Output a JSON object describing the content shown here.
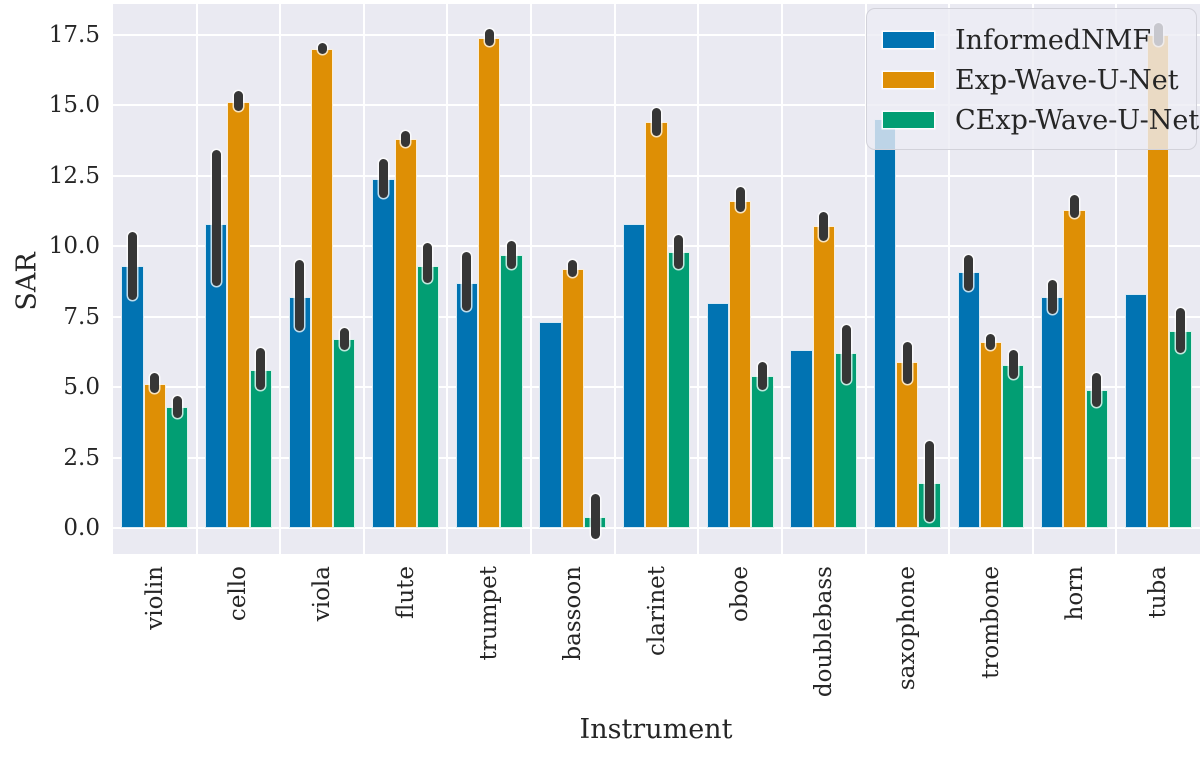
{
  "chart_data": {
    "type": "bar",
    "title": "",
    "xlabel": "Instrument",
    "ylabel": "SAR",
    "categories": [
      "violin",
      "cello",
      "viola",
      "flute",
      "trumpet",
      "bassoon",
      "clarinet",
      "oboe",
      "doublebass",
      "saxophone",
      "trombone",
      "horn",
      "tuba"
    ],
    "series": [
      {
        "name": "InformedNMF",
        "color": "#0173b2",
        "values": [
          9.3,
          10.8,
          8.2,
          12.4,
          8.7,
          7.3,
          10.8,
          8.0,
          6.3,
          14.5,
          9.1,
          8.2,
          8.3
        ],
        "ci_low": [
          8.1,
          8.6,
          7.0,
          11.7,
          7.7,
          null,
          null,
          null,
          null,
          null,
          8.4,
          7.6,
          null
        ],
        "ci_high": [
          10.5,
          13.4,
          9.5,
          13.1,
          9.8,
          null,
          null,
          null,
          null,
          null,
          9.7,
          8.8,
          null
        ]
      },
      {
        "name": "Exp-Wave-U-Net",
        "color": "#de8f05",
        "values": [
          5.1,
          15.1,
          17.0,
          13.8,
          17.4,
          9.2,
          14.4,
          11.6,
          10.7,
          5.9,
          6.6,
          11.3,
          17.5
        ],
        "ci_low": [
          4.8,
          14.8,
          16.8,
          13.5,
          17.1,
          8.9,
          13.9,
          11.2,
          10.2,
          5.1,
          6.3,
          11.0,
          17.1
        ],
        "ci_high": [
          5.5,
          15.5,
          17.2,
          14.1,
          17.7,
          9.5,
          14.9,
          12.1,
          11.2,
          6.6,
          6.9,
          11.8,
          17.9
        ]
      },
      {
        "name": "CExp-Wave-U-Net",
        "color": "#029e73",
        "values": [
          4.3,
          5.6,
          6.7,
          9.3,
          9.7,
          0.4,
          9.8,
          5.4,
          6.2,
          1.6,
          5.8,
          4.9,
          7.0
        ],
        "ci_low": [
          3.9,
          4.9,
          6.3,
          8.7,
          9.2,
          -0.4,
          9.2,
          4.9,
          5.1,
          0.2,
          5.3,
          4.3,
          6.2
        ],
        "ci_high": [
          4.7,
          6.4,
          7.1,
          10.1,
          10.2,
          1.2,
          10.4,
          5.9,
          7.2,
          3.1,
          6.3,
          5.5,
          7.8
        ]
      }
    ],
    "yticks": [
      0.0,
      2.5,
      5.0,
      7.5,
      10.0,
      12.5,
      15.0,
      17.5
    ],
    "ylim": [
      -0.92,
      18.59
    ],
    "grid": true,
    "legend_position": "upper right",
    "plot_background": "#eaeaf2",
    "gridline_color": "#ffffff",
    "errorbar_color": "#363636",
    "text_color": "#262626"
  }
}
